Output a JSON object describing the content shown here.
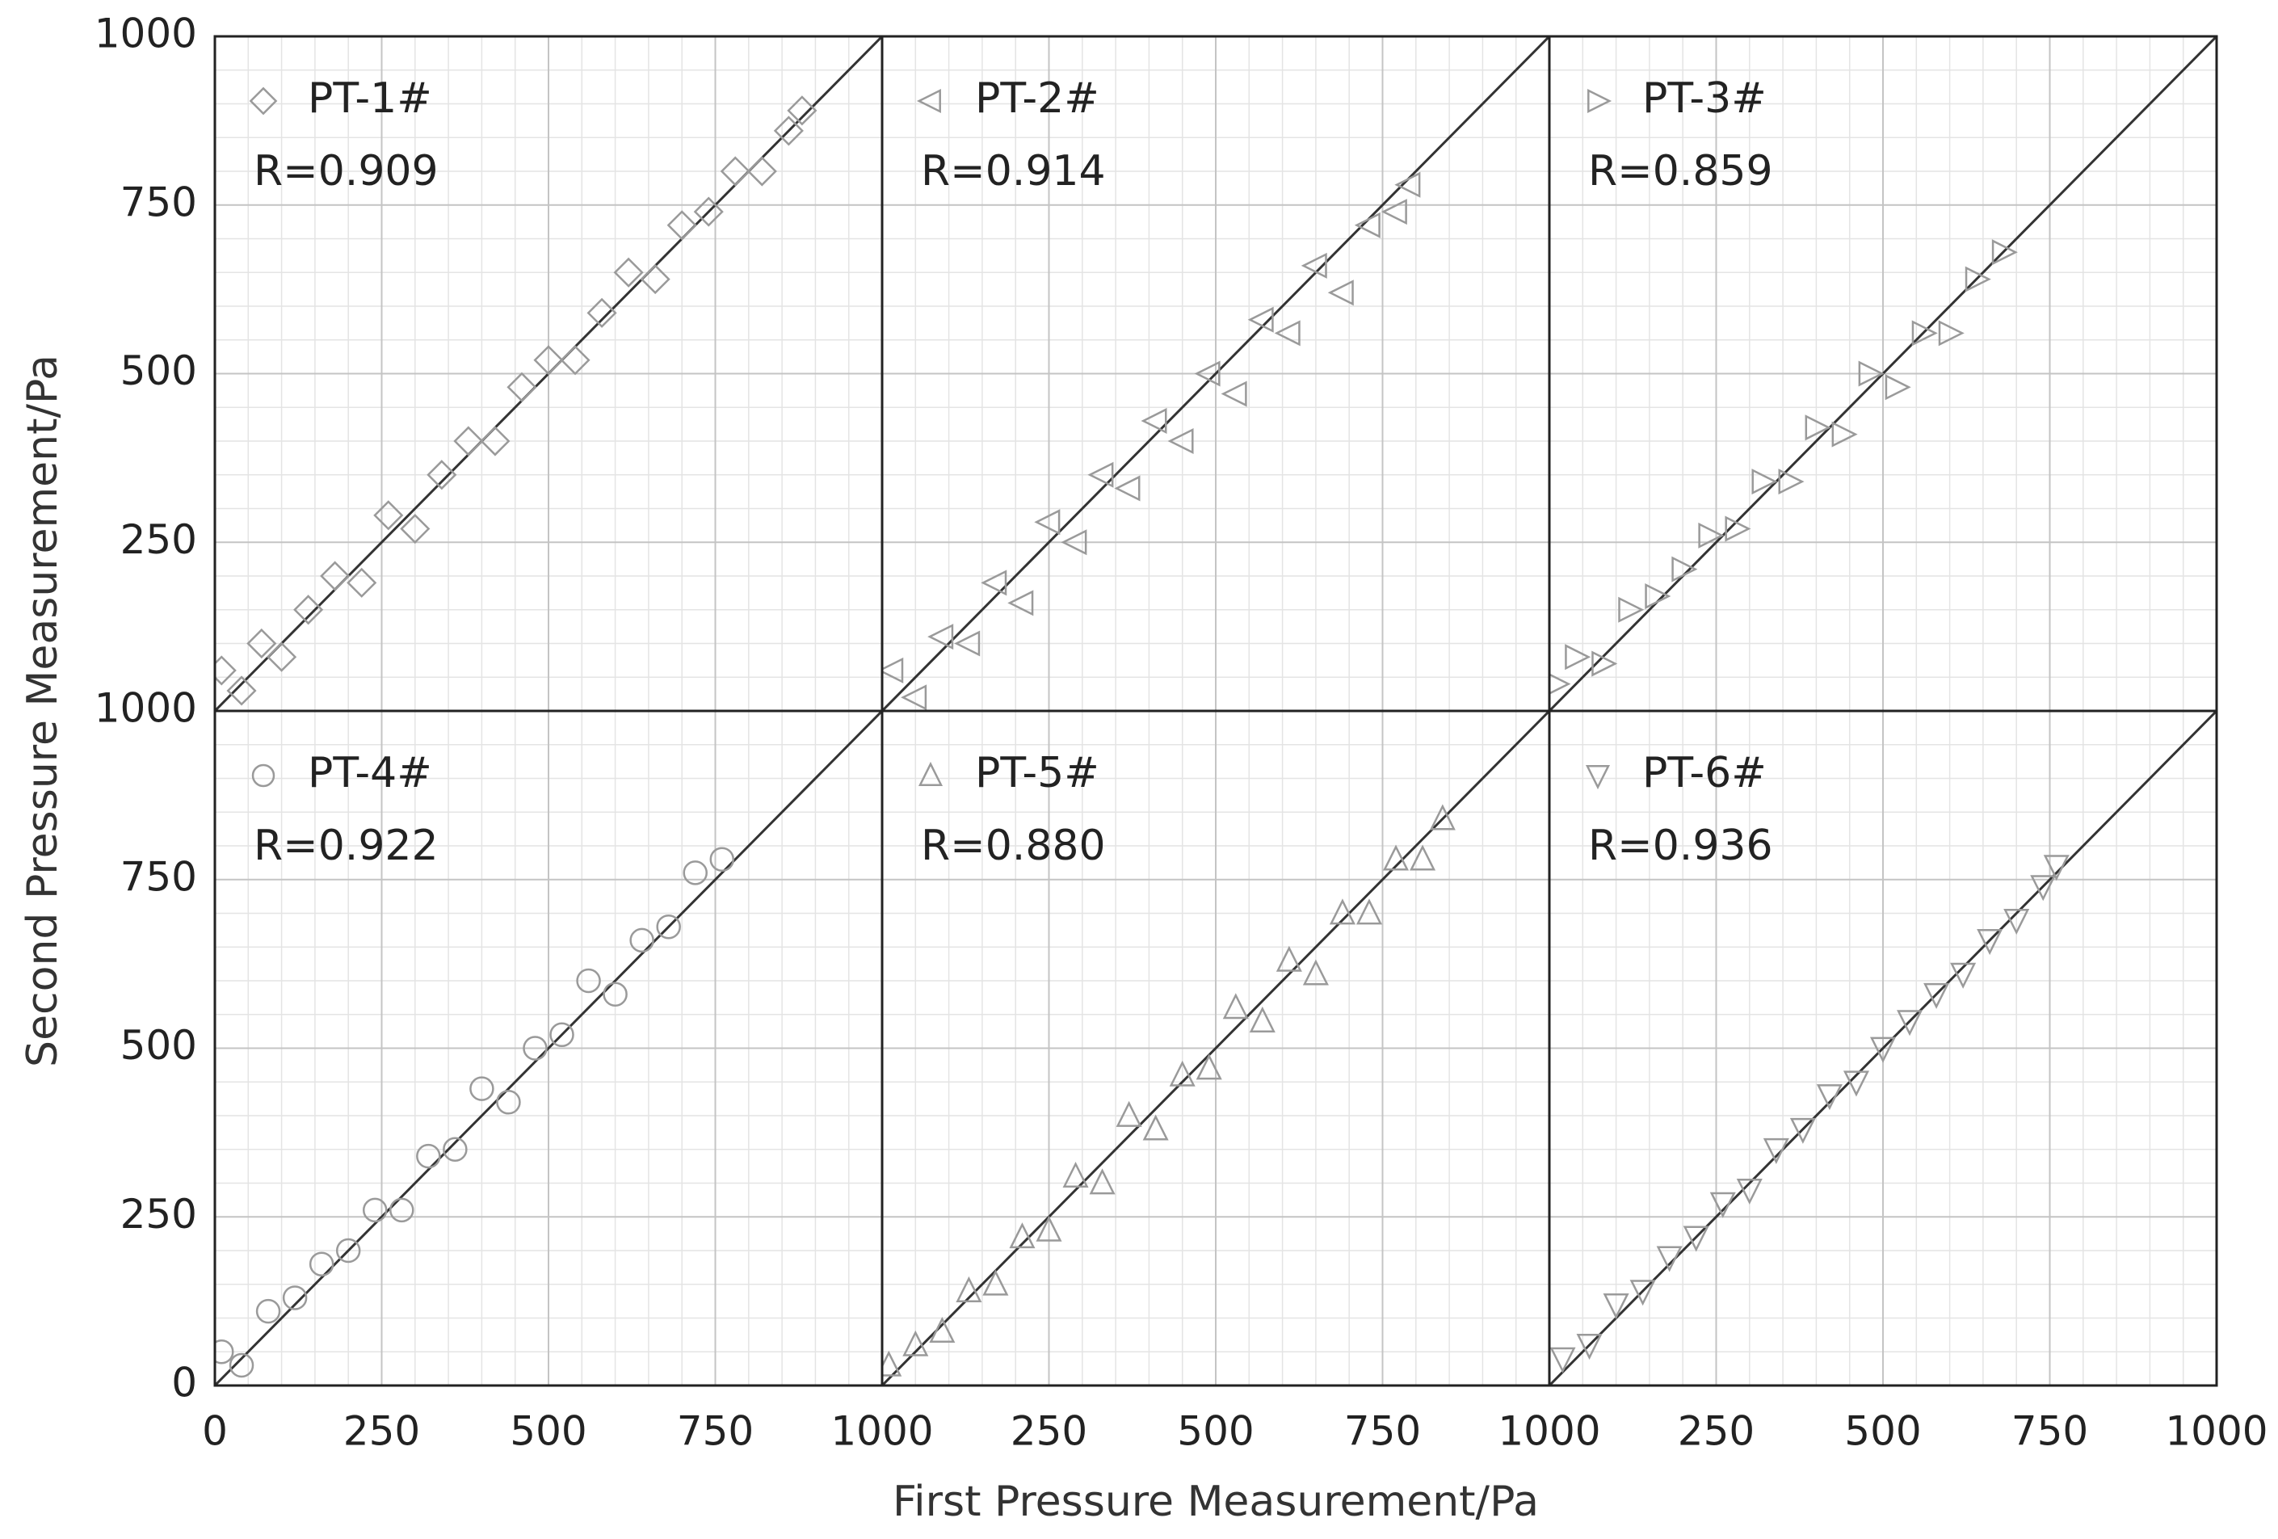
{
  "x_label": "First Pressure Measurement/Pa",
  "y_label": "Second Pressure Measurement/Pa",
  "chart_data": [
    {
      "type": "scatter",
      "annotation": "R=0.909",
      "xlim": [
        0,
        1000
      ],
      "ylim": [
        0,
        1000
      ],
      "xticks": [
        0,
        250,
        500,
        750,
        1000
      ],
      "yticks": [
        0,
        250,
        500,
        750,
        1000
      ],
      "grid": true,
      "minor_grid_step": 50,
      "series": [
        {
          "name": "PT-1#",
          "marker": "diamond",
          "color": "#9a9a9a",
          "x": [
            10,
            40,
            70,
            100,
            140,
            180,
            220,
            260,
            300,
            340,
            380,
            420,
            460,
            500,
            540,
            580,
            620,
            660,
            700,
            740,
            780,
            820,
            860,
            880
          ],
          "values": [
            60,
            30,
            100,
            80,
            150,
            200,
            190,
            290,
            270,
            350,
            400,
            400,
            480,
            520,
            520,
            590,
            650,
            640,
            720,
            740,
            800,
            800,
            860,
            890
          ]
        }
      ]
    },
    {
      "type": "scatter",
      "annotation": "R=0.914",
      "xlim": [
        0,
        1000
      ],
      "ylim": [
        0,
        1000
      ],
      "xticks": [
        0,
        250,
        500,
        750,
        1000
      ],
      "yticks": [
        0,
        250,
        500,
        750,
        1000
      ],
      "grid": true,
      "minor_grid_step": 50,
      "series": [
        {
          "name": "PT-2#",
          "marker": "triangle-left",
          "color": "#9a9a9a",
          "x": [
            15,
            50,
            90,
            130,
            170,
            210,
            250,
            290,
            330,
            370,
            410,
            450,
            490,
            530,
            570,
            610,
            650,
            690,
            730,
            770,
            790
          ],
          "values": [
            60,
            20,
            110,
            100,
            190,
            160,
            280,
            250,
            350,
            330,
            430,
            400,
            500,
            470,
            580,
            560,
            660,
            620,
            720,
            740,
            780
          ]
        }
      ]
    },
    {
      "type": "scatter",
      "annotation": "R=0.859",
      "xlim": [
        0,
        1000
      ],
      "ylim": [
        0,
        1000
      ],
      "xticks": [
        0,
        250,
        500,
        750,
        1000
      ],
      "yticks": [
        0,
        250,
        500,
        750,
        1000
      ],
      "grid": true,
      "minor_grid_step": 50,
      "series": [
        {
          "name": "PT-3#",
          "marker": "triangle-right",
          "color": "#9a9a9a",
          "x": [
            10,
            40,
            80,
            120,
            160,
            200,
            240,
            280,
            320,
            360,
            400,
            440,
            480,
            520,
            560,
            600,
            640,
            680
          ],
          "values": [
            40,
            80,
            70,
            150,
            170,
            210,
            260,
            270,
            340,
            340,
            420,
            410,
            500,
            480,
            560,
            560,
            640,
            680
          ]
        }
      ]
    },
    {
      "type": "scatter",
      "annotation": "R=0.922",
      "xlim": [
        0,
        1000
      ],
      "ylim": [
        0,
        1000
      ],
      "xticks": [
        0,
        250,
        500,
        750,
        1000
      ],
      "yticks": [
        0,
        250,
        500,
        750,
        1000
      ],
      "grid": true,
      "minor_grid_step": 50,
      "series": [
        {
          "name": "PT-4#",
          "marker": "circle",
          "color": "#9a9a9a",
          "x": [
            10,
            40,
            80,
            120,
            160,
            200,
            240,
            280,
            320,
            360,
            400,
            440,
            480,
            520,
            560,
            600,
            640,
            680,
            720,
            760
          ],
          "values": [
            50,
            30,
            110,
            130,
            180,
            200,
            260,
            260,
            340,
            350,
            440,
            420,
            500,
            520,
            600,
            580,
            660,
            680,
            760,
            780
          ]
        }
      ]
    },
    {
      "type": "scatter",
      "annotation": "R=0.880",
      "xlim": [
        0,
        1000
      ],
      "ylim": [
        0,
        1000
      ],
      "xticks": [
        0,
        250,
        500,
        750,
        1000
      ],
      "yticks": [
        0,
        250,
        500,
        750,
        1000
      ],
      "grid": true,
      "minor_grid_step": 50,
      "series": [
        {
          "name": "PT-5#",
          "marker": "triangle-up",
          "color": "#9a9a9a",
          "x": [
            10,
            50,
            90,
            130,
            170,
            210,
            250,
            290,
            330,
            370,
            410,
            450,
            490,
            530,
            570,
            610,
            650,
            690,
            730,
            770,
            810,
            840
          ],
          "values": [
            30,
            60,
            80,
            140,
            150,
            220,
            230,
            310,
            300,
            400,
            380,
            460,
            470,
            560,
            540,
            630,
            610,
            700,
            700,
            780,
            780,
            840
          ]
        }
      ]
    },
    {
      "type": "scatter",
      "annotation": "R=0.936",
      "xlim": [
        0,
        1000
      ],
      "ylim": [
        0,
        1000
      ],
      "xticks": [
        0,
        250,
        500,
        750,
        1000
      ],
      "yticks": [
        0,
        250,
        500,
        750,
        1000
      ],
      "grid": true,
      "minor_grid_step": 50,
      "series": [
        {
          "name": "PT-6#",
          "marker": "triangle-down",
          "color": "#9a9a9a",
          "x": [
            20,
            60,
            100,
            140,
            180,
            220,
            260,
            300,
            340,
            380,
            420,
            460,
            500,
            540,
            580,
            620,
            660,
            700,
            740,
            760
          ],
          "values": [
            40,
            60,
            120,
            140,
            190,
            220,
            270,
            290,
            350,
            380,
            430,
            450,
            500,
            540,
            580,
            610,
            660,
            690,
            740,
            770
          ]
        }
      ]
    }
  ]
}
